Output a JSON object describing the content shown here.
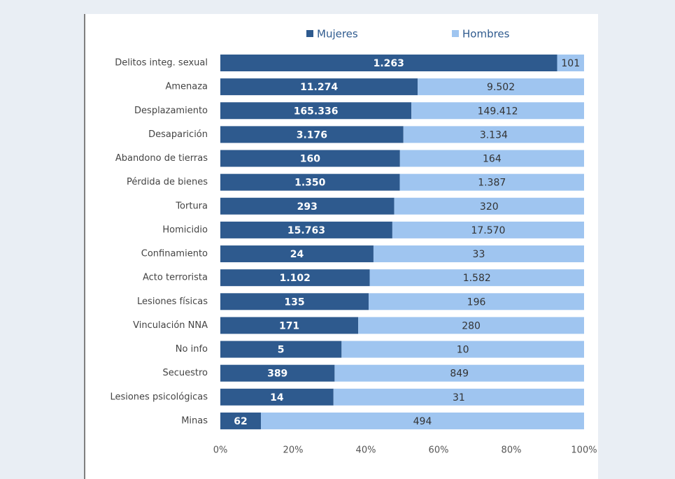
{
  "chart_data": {
    "type": "bar",
    "orientation": "horizontal",
    "stacking": "percent",
    "categories": [
      "Delitos integ. sexual",
      "Amenaza",
      "Desplazamiento",
      "Desaparición",
      "Abandono de tierras",
      "Pérdida de bienes",
      "Tortura",
      "Homicidio",
      "Confinamiento",
      "Acto terrorista",
      "Lesiones físicas",
      "Vinculación NNA",
      "No info",
      "Secuestro",
      "Lesiones psicológicas",
      "Minas"
    ],
    "series": [
      {
        "name": "Mujeres",
        "color": "#2e5a8e",
        "values": [
          1263,
          11274,
          165336,
          3176,
          160,
          1350,
          293,
          15763,
          24,
          1102,
          135,
          171,
          5,
          389,
          14,
          62
        ],
        "value_labels": [
          "1.263",
          "11.274",
          "165.336",
          "3.176",
          "160",
          "1.350",
          "293",
          "15.763",
          "24",
          "1.102",
          "135",
          "171",
          "5",
          "389",
          "14",
          "62"
        ]
      },
      {
        "name": "Hombres",
        "color": "#9fc5f0",
        "values": [
          101,
          9502,
          149412,
          3134,
          164,
          1387,
          320,
          17570,
          33,
          1582,
          196,
          280,
          10,
          849,
          31,
          494
        ],
        "value_labels": [
          "101",
          "9.502",
          "149.412",
          "3.134",
          "164",
          "1.387",
          "320",
          "17.570",
          "33",
          "1.582",
          "196",
          "280",
          "10",
          "849",
          "31",
          "494"
        ]
      }
    ],
    "xlim": [
      0,
      100
    ],
    "xticks": [
      {
        "value": 0,
        "label": "0%"
      },
      {
        "value": 20,
        "label": "20%"
      },
      {
        "value": 40,
        "label": "40%"
      },
      {
        "value": 60,
        "label": "60%"
      },
      {
        "value": 80,
        "label": "80%"
      },
      {
        "value": 100,
        "label": "100%"
      }
    ],
    "legend": "top"
  }
}
